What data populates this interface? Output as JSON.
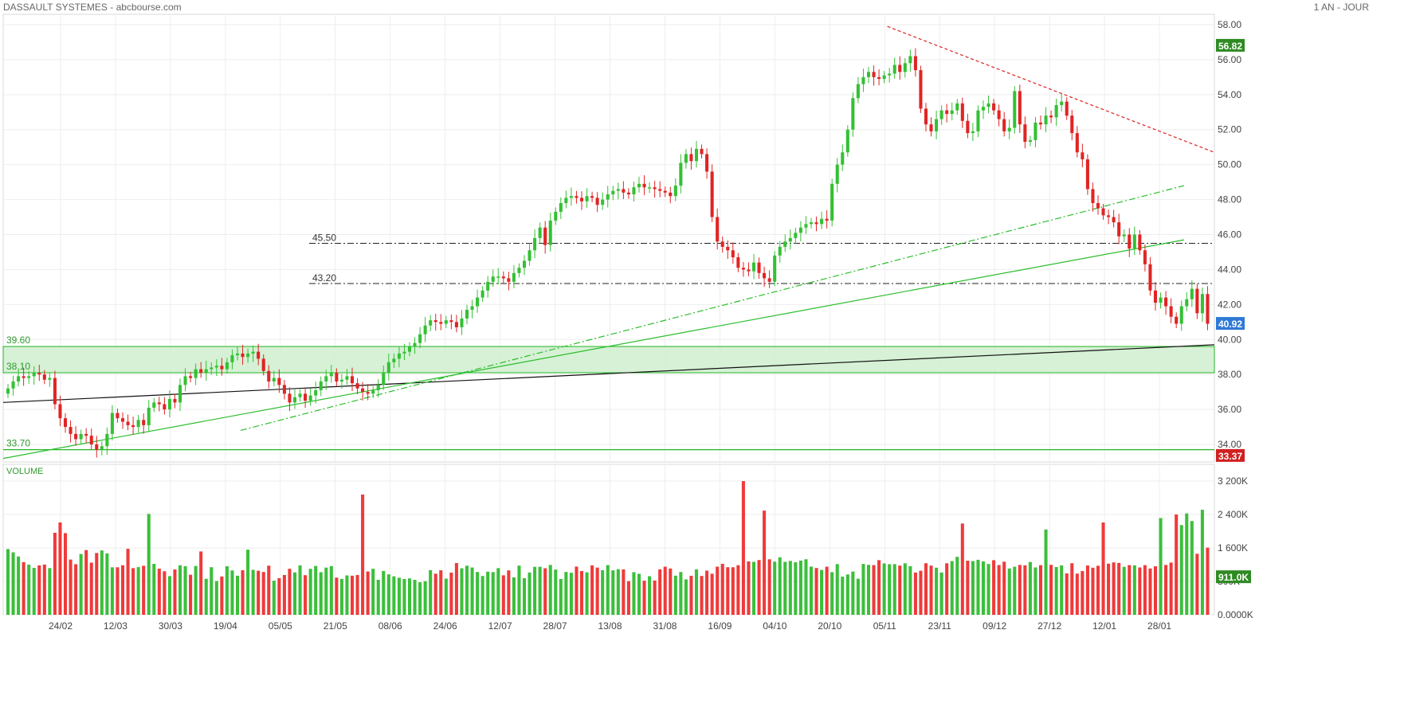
{
  "header": {
    "title": "DASSAULT SYSTEMES - abcbourse.com",
    "period": "1 AN - JOUR"
  },
  "chart_data": {
    "type": "candlestick",
    "title": "DASSAULT SYSTEMES - abcbourse.com",
    "price_axis": {
      "ylim": [
        33,
        58.5
      ],
      "ticks": [
        "58.00",
        "56.00",
        "54.00",
        "52.00",
        "50.00",
        "48.00",
        "46.00",
        "44.00",
        "42.00",
        "40.00",
        "38.00",
        "36.00",
        "34.00"
      ],
      "labels": [
        {
          "value": 56.82,
          "text": "56.82",
          "color": "#2e8b22"
        },
        {
          "value": 40.92,
          "text": "40.92",
          "color": "#2f79d6"
        },
        {
          "value": 33.37,
          "text": "33.37",
          "color": "#d02020"
        }
      ]
    },
    "date_ticks": [
      "24/02",
      "12/03",
      "30/03",
      "19/04",
      "05/05",
      "21/05",
      "08/06",
      "24/06",
      "12/07",
      "28/07",
      "13/08",
      "31/08",
      "16/09",
      "04/10",
      "20/10",
      "05/11",
      "23/11",
      "09/12",
      "27/12",
      "12/01",
      "28/01"
    ],
    "zone": {
      "from": 38.1,
      "to": 39.6,
      "labels": [
        "39.60",
        "38.10"
      ]
    },
    "support_line": {
      "value": 33.7,
      "label": "33.70"
    },
    "dashdot_levels": [
      {
        "value": 45.5,
        "label": "45.50"
      },
      {
        "value": 43.2,
        "label": "43.20"
      }
    ],
    "trend_lines": [
      {
        "style": "solid-black",
        "from": [
          0,
          36.4
        ],
        "to": [
          1,
          39.7
        ]
      },
      {
        "style": "solid-green",
        "from": [
          0,
          33.2
        ],
        "to": [
          0.975,
          45.7
        ]
      },
      {
        "style": "dashdot-green",
        "from": [
          0.196,
          34.8
        ],
        "to": [
          0.975,
          48.8
        ]
      },
      {
        "style": "dashed-red",
        "from": [
          0.73,
          57.9
        ],
        "to": [
          1,
          50.7
        ]
      }
    ],
    "closes": [
      37.2,
      37.6,
      37.9,
      37.8,
      37.9,
      38.1,
      38.0,
      37.7,
      37.8,
      36.3,
      35.5,
      35.0,
      34.6,
      34.3,
      34.6,
      34.5,
      34.0,
      33.7,
      33.9,
      34.6,
      35.8,
      35.5,
      35.3,
      35.1,
      35.0,
      35.4,
      35.1,
      36.1,
      36.4,
      36.3,
      36.0,
      36.6,
      36.4,
      37.4,
      37.9,
      37.8,
      38.3,
      38.1,
      38.3,
      38.4,
      38.5,
      38.3,
      38.7,
      39.1,
      39.2,
      39.0,
      39.2,
      39.3,
      38.9,
      38.2,
      37.6,
      37.8,
      37.4,
      36.9,
      36.4,
      36.7,
      36.9,
      36.5,
      36.8,
      37.1,
      37.6,
      37.9,
      38.1,
      37.6,
      37.7,
      37.9,
      37.5,
      37.2,
      37.0,
      36.9,
      37.1,
      37.4,
      38.1,
      38.7,
      38.9,
      39.2,
      39.3,
      39.6,
      39.8,
      40.3,
      40.8,
      41.1,
      41.0,
      40.9,
      41.1,
      41.0,
      40.7,
      41.2,
      41.7,
      41.9,
      42.4,
      42.8,
      43.3,
      43.6,
      43.6,
      43.5,
      43.3,
      43.8,
      44.1,
      44.5,
      45.1,
      45.8,
      46.4,
      45.4,
      46.8,
      47.3,
      47.8,
      48.1,
      48.2,
      48.1,
      47.9,
      48.2,
      48.1,
      47.7,
      48.0,
      48.3,
      48.5,
      48.6,
      48.4,
      48.3,
      48.7,
      48.9,
      48.7,
      48.7,
      48.6,
      48.5,
      48.4,
      48.2,
      48.8,
      50.1,
      50.6,
      50.2,
      50.9,
      50.6,
      49.6,
      47.0,
      45.6,
      45.3,
      45.1,
      44.7,
      44.1,
      44.0,
      43.9,
      44.4,
      43.8,
      43.5,
      43.3,
      44.8,
      45.3,
      45.6,
      45.8,
      46.1,
      46.4,
      46.6,
      46.7,
      46.6,
      46.9,
      46.8,
      48.9,
      50.0,
      50.7,
      52.0,
      53.8,
      54.6,
      55.0,
      55.3,
      55.0,
      54.9,
      55.1,
      55.2,
      55.7,
      55.3,
      55.8,
      56.2,
      55.4,
      53.2,
      52.3,
      51.9,
      52.6,
      53.1,
      52.9,
      53.1,
      53.5,
      52.5,
      51.8,
      51.9,
      53.1,
      53.3,
      53.5,
      53.1,
      52.6,
      51.9,
      52.1,
      54.2,
      52.3,
      51.3,
      51.4,
      52.4,
      52.3,
      52.8,
      52.7,
      53.4,
      53.6,
      52.8,
      51.8,
      50.7,
      50.3,
      48.6,
      47.8,
      47.5,
      47.1,
      47.0,
      46.7,
      45.9,
      46.0,
      45.2,
      46.0,
      45.1,
      44.3,
      42.8,
      42.1,
      42.4,
      41.9,
      41.3,
      40.9,
      41.9,
      42.3,
      42.9,
      41.5,
      42.6,
      40.9
    ],
    "volume_axis": {
      "ylim": [
        0,
        3600
      ],
      "ticks": [
        "3 200K",
        "2 400K",
        "1 600K",
        "800K",
        "0.0000K"
      ],
      "label": {
        "value": 911,
        "text": "911.0K",
        "color": "#2e8b22"
      },
      "title": "VOLUME"
    },
    "volumes": [
      1573,
      1495,
      1396,
      1261,
      1200,
      1123,
      1183,
      1202,
      1118,
      1963,
      2210,
      1954,
      1322,
      1211,
      1455,
      1549,
      1249,
      1479,
      1539,
      1469,
      1137,
      1138,
      1187,
      1580,
      1117,
      1141,
      1173,
      2414,
      1218,
      1103,
      1043,
      925,
      1085,
      1186,
      1162,
      959,
      1168,
      1516,
      862,
      1139,
      809,
      918,
      1163,
      1062,
      935,
      1067,
      1559,
      1076,
      1055,
      1025,
      1176,
      817,
      877,
      953,
      1102,
      1015,
      1182,
      948,
      1101,
      1169,
      1020,
      1130,
      1165,
      890,
      860,
      943,
      936,
      952,
      2876,
      1037,
      1102,
      838,
      1050,
      968,
      921,
      888,
      857,
      871,
      837,
      780,
      805,
      1068,
      984,
      1065,
      866,
      1010,
      1239,
      1113,
      1175,
      1132,
      1025,
      929,
      1033,
      1022,
      1117,
      945,
      1063,
      897,
      1177,
      876,
      1012,
      1148,
      1150,
      1114,
      1194,
      1083,
      858,
      1026,
      1006,
      1154,
      1047,
      1017,
      1184,
      1131,
      1068,
      1190,
      1064,
      1092,
      1087,
      807,
      1021,
      981,
      817,
      924,
      820,
      1088,
      1152,
      1108,
      937,
      1024,
      847,
      934,
      1088,
      930,
      1057,
      983,
      1152,
      1220,
      1139,
      1138,
      1187,
      3199,
      1279,
      1268,
      1311,
      2493,
      1328,
      1272,
      1376,
      1267,
      1290,
      1258,
      1297,
      1329,
      1154,
      1120,
      1075,
      1152,
      1021,
      1213,
      913,
      966,
      1035,
      864,
      1217,
      1196,
      1189,
      1308,
      1229,
      1210,
      1213,
      1178,
      1232,
      1164,
      1011,
      1055,
      1234,
      1178,
      1127,
      1012,
      1233,
      1286,
      1387,
      2184,
      1295,
      1286,
      1317,
      1279,
      1215,
      1307,
      1191,
      1271,
      1109,
      1151,
      1194,
      1184,
      1264,
      1134,
      1188,
      2041,
      1196,
      1143,
      1183,
      990,
      1234,
      985,
      1047,
      1180,
      1127,
      1174,
      2209,
      1224,
      1254,
      1241,
      1148,
      1189,
      1184,
      1133,
      1188,
      1108,
      1161,
      2314,
      1193,
      1250,
      2400,
      2147,
      2425,
      2244,
      1460,
      2513,
      1608,
      911
    ],
    "volume_colors_follow_candle": true
  }
}
